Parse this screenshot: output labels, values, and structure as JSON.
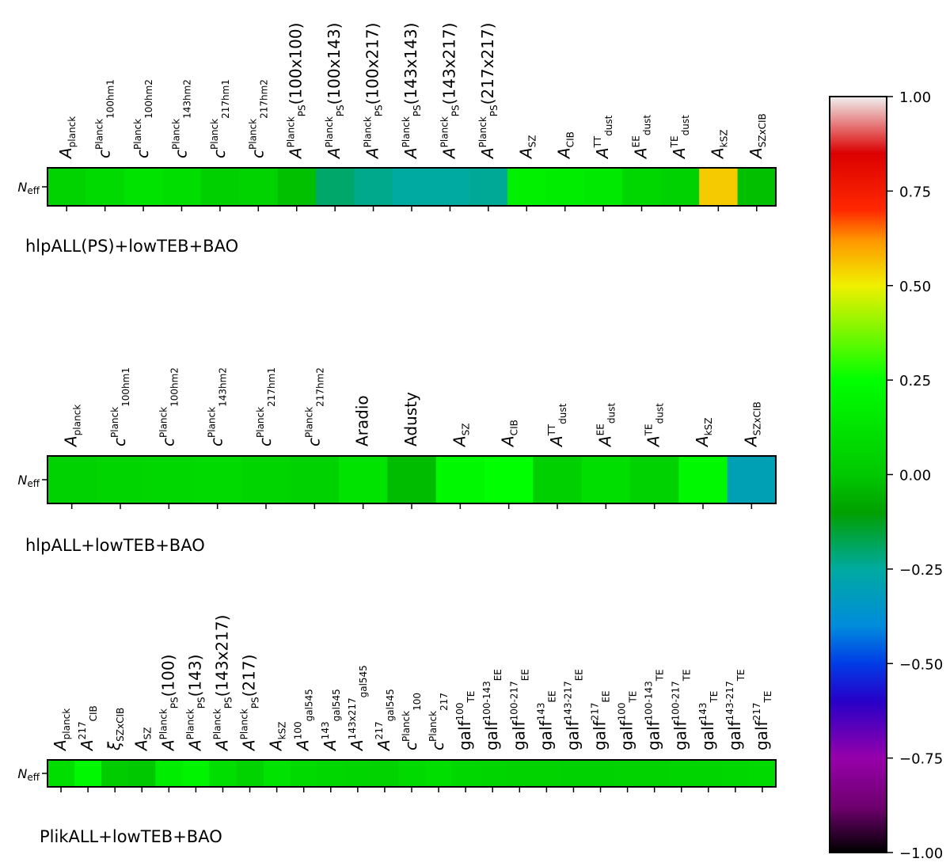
{
  "chart_data": [
    {
      "type": "heatmap",
      "title": "hlpALL(PS)+lowTEB+BAO",
      "row_label": "N_eff",
      "columns": [
        "A_planck",
        "c^Planck_100hm1",
        "c^Planck_100hm2",
        "c^Planck_143hm2",
        "c^Planck_217hm1",
        "c^Planck_217hm2",
        "A^Planck_PS(100x100)",
        "A^Planck_PS(100x143)",
        "A^Planck_PS(100x217)",
        "A^Planck_PS(143x143)",
        "A^Planck_PS(143x217)",
        "A^Planck_PS(217x217)",
        "A_SZ",
        "A_CIB",
        "A^TT_dust",
        "A^EE_dust",
        "A^TE_dust",
        "A_kSZ",
        "A_SZxCIB"
      ],
      "values": [
        0.05,
        0.08,
        0.12,
        0.1,
        0.03,
        0.05,
        -0.02,
        -0.2,
        -0.23,
        -0.25,
        -0.25,
        -0.24,
        0.18,
        0.17,
        0.15,
        0.07,
        0.04,
        0.55,
        -0.02
      ]
    },
    {
      "type": "heatmap",
      "title": "hlpALL+lowTEB+BAO",
      "row_label": "N_eff",
      "columns": [
        "A_planck",
        "c^Planck_100hm1",
        "c^Planck_100hm2",
        "c^Planck_143hm2",
        "c^Planck_217hm1",
        "c^Planck_217hm2",
        "Aradio",
        "Adusty",
        "A_SZ",
        "A_CIB",
        "A^TT_dust",
        "A^EE_dust",
        "A^TE_dust",
        "A_kSZ",
        "A_SZxCIB"
      ],
      "values": [
        0.04,
        0.06,
        0.07,
        0.08,
        0.06,
        0.04,
        0.12,
        -0.03,
        0.22,
        0.25,
        0.03,
        0.1,
        0.04,
        0.22,
        -0.3
      ]
    },
    {
      "type": "heatmap",
      "title": "PlikALL+lowTEB+BAO",
      "row_label": "N_eff",
      "columns": [
        "A_planck",
        "A^217_CIB",
        "ξ_SZxCIB",
        "A_SZ",
        "A^Planck_PS(100)",
        "A^Planck_PS(143)",
        "A^Planck_PS(143x217)",
        "A^Planck_PS(217)",
        "A_kSZ",
        "A^100_gal545",
        "A^143_gal545",
        "A^143x217_gal545",
        "A^217_gal545",
        "c^Planck_100",
        "c^Planck_217",
        "galf^100_TE",
        "galf^100-143_EE",
        "galf^100-217_EE",
        "galf^143_EE",
        "galf^143-217_EE",
        "galf^217_EE",
        "galf^100_TE",
        "galf^100-143_TE",
        "galf^100-217_TE",
        "galf^143_TE",
        "galf^143-217_TE",
        "galf^217_TE"
      ],
      "values": [
        0.1,
        0.22,
        0.02,
        0.0,
        0.17,
        0.2,
        0.1,
        0.05,
        0.12,
        0.08,
        0.07,
        0.06,
        0.05,
        0.08,
        0.1,
        0.07,
        0.06,
        0.05,
        0.05,
        0.04,
        0.04,
        0.05,
        0.05,
        0.06,
        0.06,
        0.07,
        0.08
      ]
    }
  ],
  "colorbar": {
    "ticks": [
      "1.00",
      "0.75",
      "0.50",
      "0.25",
      "0.00",
      "−0.25",
      "−0.50",
      "−0.75",
      "−1.00"
    ],
    "range": [
      -1,
      1
    ]
  }
}
